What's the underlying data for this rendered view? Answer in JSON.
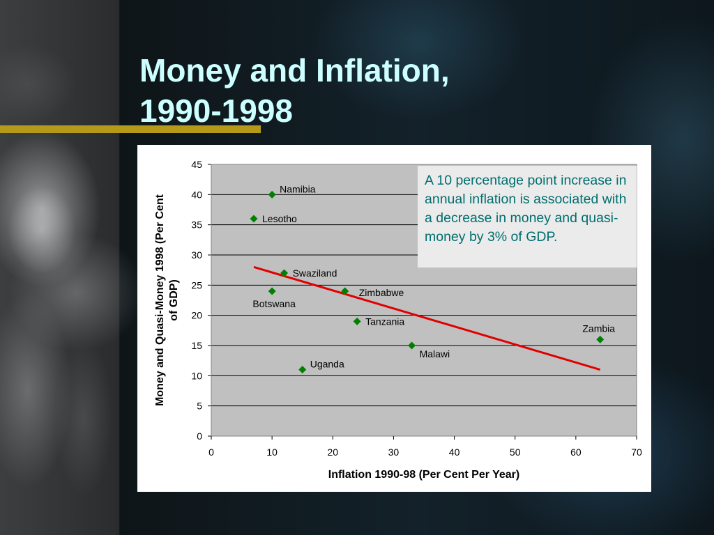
{
  "slide": {
    "title_line1": "Money and Inflation,",
    "title_line2": "1990-1998",
    "annotation": "A 10 percentage point increase in annual inflation is associated with a decrease in money and quasi-money by 3% of GDP."
  },
  "colors": {
    "title": "#ccffff",
    "accent_bar": "#b59a1a",
    "plot_background": "#c0c0c0",
    "marker": "#008000",
    "trend_line": "#e00000",
    "annotation_text": "#006e6e"
  },
  "chart_data": {
    "type": "scatter",
    "xlabel": "Inflation 1990-98 (Per Cent Per Year)",
    "ylabel_line1": "Money and Quasi-Money 1998 (Per Cent",
    "ylabel_line2": "of GDP)",
    "xlim": [
      0,
      70
    ],
    "ylim": [
      0,
      45
    ],
    "xticks": [
      0,
      10,
      20,
      30,
      40,
      50,
      60,
      70
    ],
    "yticks": [
      0,
      5,
      10,
      15,
      20,
      25,
      30,
      35,
      40,
      45
    ],
    "grid": "horizontal",
    "marker": "diamond",
    "points": [
      {
        "label": "Namibia",
        "x": 10,
        "y": 40,
        "label_pos": "right-above"
      },
      {
        "label": "Lesotho",
        "x": 7,
        "y": 36,
        "label_pos": "right"
      },
      {
        "label": "Swaziland",
        "x": 12,
        "y": 27,
        "label_pos": "right"
      },
      {
        "label": "Botswana",
        "x": 10,
        "y": 24,
        "label_pos": "below"
      },
      {
        "label": "Zimbabwe",
        "x": 22,
        "y": 24,
        "label_pos": "right-far"
      },
      {
        "label": "Tanzania",
        "x": 24,
        "y": 19,
        "label_pos": "right"
      },
      {
        "label": "Malawi",
        "x": 33,
        "y": 15,
        "label_pos": "right-below"
      },
      {
        "label": "Uganda",
        "x": 15,
        "y": 11,
        "label_pos": "right-above"
      },
      {
        "label": "Zambia",
        "x": 64,
        "y": 16,
        "label_pos": "above-left"
      }
    ],
    "trend_line": {
      "x": [
        7,
        64
      ],
      "y": [
        28,
        11
      ]
    }
  }
}
